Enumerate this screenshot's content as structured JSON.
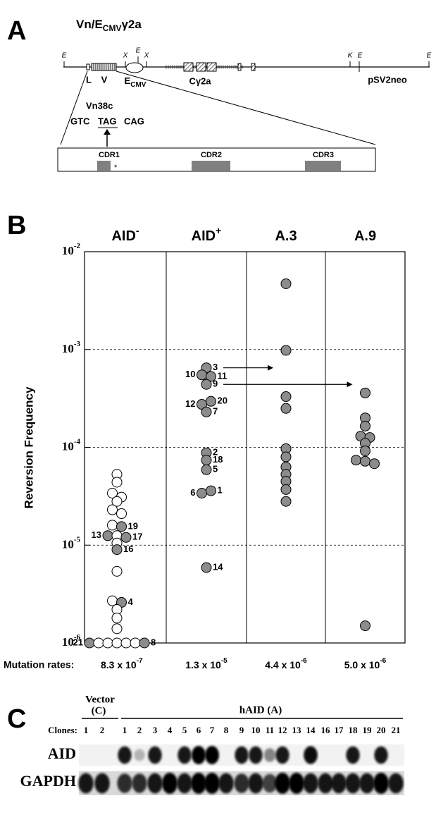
{
  "panel_labels": [
    "A",
    "B",
    "C"
  ],
  "construct": {
    "title": {
      "main": "Vn/E",
      "sub": "CMV",
      "tail": "γ2a"
    },
    "sites": [
      "E",
      "X",
      "E",
      "X",
      "K",
      "E",
      "E"
    ],
    "segments": {
      "L": "L",
      "V": "V",
      "enhancer": {
        "main": "E",
        "sub": "CMV"
      },
      "constant": "Cγ2a",
      "neo": "pSV2neo"
    },
    "mutation": {
      "name": "Vn38c",
      "codons": [
        "GTC",
        "TAG",
        "CAG"
      ]
    },
    "cdrs": [
      "CDR1",
      "CDR2",
      "CDR3"
    ],
    "marker": "*"
  },
  "chart_data": {
    "type": "scatter",
    "y_label": "Reversion Frequency",
    "log": true,
    "grid": true,
    "ylim": [
      1e-06,
      0.01
    ],
    "yticks": [
      {
        "value": 1e-06,
        "label": "10",
        "exponent": "-6"
      },
      {
        "value": 1e-05,
        "label": "10",
        "exponent": "-5"
      },
      {
        "value": 0.0001,
        "label": "10",
        "exponent": "-4"
      },
      {
        "value": 0.001,
        "label": "10",
        "exponent": "-3"
      },
      {
        "value": 0.01,
        "label": "10",
        "exponent": "-2"
      }
    ],
    "categories": [
      "AID",
      "AID",
      "A.3",
      "A.9"
    ],
    "category_superscripts": [
      "-",
      "+",
      null,
      null
    ],
    "mutation_rates_label": "Mutation rates:",
    "mutation_rates": [
      {
        "label": "8.3 x 10",
        "exponent": "-7"
      },
      {
        "label": "1.3 x 10",
        "exponent": "-5"
      },
      {
        "label": "4.4 x 10",
        "exponent": "-6"
      },
      {
        "label": "5.0 x 10",
        "exponent": "-6"
      }
    ],
    "groups": [
      {
        "points": [
          {
            "value": 5.3e-05,
            "color": "#ffffff"
          },
          {
            "value": 4.4e-05,
            "color": "#ffffff"
          },
          {
            "value": 3.4e-05,
            "color": "#ffffff"
          },
          {
            "value": 3.1e-05,
            "color": "#ffffff"
          },
          {
            "value": 2.8e-05,
            "color": "#ffffff"
          },
          {
            "value": 2.3e-05,
            "color": "#ffffff"
          },
          {
            "value": 2.1e-05,
            "color": "#ffffff"
          },
          {
            "value": 1.6e-05,
            "color": "#ffffff"
          },
          {
            "value": 1.55e-05,
            "color": "#8c8c8c",
            "label": "19"
          },
          {
            "value": 1.25e-05,
            "color": "#8c8c8c",
            "label": "13"
          },
          {
            "value": 1.25e-05,
            "color": "#ffffff"
          },
          {
            "value": 1.2e-05,
            "color": "#8c8c8c",
            "label": "17"
          },
          {
            "value": 1.05e-05,
            "color": "#ffffff"
          },
          {
            "value": 9e-06,
            "color": "#8c8c8c",
            "label": "16"
          },
          {
            "value": 5.4e-06,
            "color": "#ffffff"
          },
          {
            "value": 2.7e-06,
            "color": "#ffffff"
          },
          {
            "value": 2.6e-06,
            "color": "#8c8c8c",
            "label": "4"
          },
          {
            "value": 2.2e-06,
            "color": "#ffffff"
          },
          {
            "value": 1.8e-06,
            "color": "#ffffff"
          },
          {
            "value": 1.4e-06,
            "color": "#ffffff"
          },
          {
            "value": 1e-06,
            "color": "#8c8c8c",
            "label": "21"
          },
          {
            "value": 1e-06,
            "color": "#ffffff"
          },
          {
            "value": 1e-06,
            "color": "#ffffff"
          },
          {
            "value": 1e-06,
            "color": "#ffffff"
          },
          {
            "value": 1e-06,
            "color": "#ffffff"
          },
          {
            "value": 1e-06,
            "color": "#ffffff"
          },
          {
            "value": 1e-06,
            "color": "#8c8c8c",
            "label": "8"
          }
        ]
      },
      {
        "points": [
          {
            "value": 0.00065,
            "color": "#8c8c8c",
            "label": "3"
          },
          {
            "value": 0.00055,
            "color": "#8c8c8c",
            "label": "10"
          },
          {
            "value": 0.00053,
            "color": "#8c8c8c",
            "label": "11"
          },
          {
            "value": 0.00044,
            "color": "#8c8c8c",
            "label": "9"
          },
          {
            "value": 0.000275,
            "color": "#8c8c8c",
            "label": "12"
          },
          {
            "value": 0.000295,
            "color": "#8c8c8c",
            "label": "20"
          },
          {
            "value": 0.00023,
            "color": "#8c8c8c",
            "label": "7"
          },
          {
            "value": 8.8e-05,
            "color": "#8c8c8c",
            "label": "2"
          },
          {
            "value": 7.4e-05,
            "color": "#8c8c8c",
            "label": "18"
          },
          {
            "value": 5.9e-05,
            "color": "#8c8c8c",
            "label": "5"
          },
          {
            "value": 3.4e-05,
            "color": "#8c8c8c",
            "label": "6"
          },
          {
            "value": 3.6e-05,
            "color": "#8c8c8c",
            "label": "1"
          },
          {
            "value": 5.9e-06,
            "color": "#8c8c8c",
            "label": "14"
          }
        ]
      },
      {
        "points": [
          {
            "value": 0.0047,
            "color": "#8c8c8c"
          },
          {
            "value": 0.00098,
            "color": "#8c8c8c"
          },
          {
            "value": 0.00033,
            "color": "#8c8c8c"
          },
          {
            "value": 0.00025,
            "color": "#8c8c8c"
          },
          {
            "value": 9.7e-05,
            "color": "#8c8c8c"
          },
          {
            "value": 8e-05,
            "color": "#8c8c8c"
          },
          {
            "value": 6.3e-05,
            "color": "#8c8c8c"
          },
          {
            "value": 5.3e-05,
            "color": "#8c8c8c"
          },
          {
            "value": 4.5e-05,
            "color": "#8c8c8c"
          },
          {
            "value": 3.7e-05,
            "color": "#8c8c8c"
          },
          {
            "value": 2.8e-05,
            "color": "#8c8c8c"
          }
        ]
      },
      {
        "points": [
          {
            "value": 0.00036,
            "color": "#8c8c8c"
          },
          {
            "value": 0.0002,
            "color": "#8c8c8c"
          },
          {
            "value": 0.000165,
            "color": "#8c8c8c"
          },
          {
            "value": 0.00013,
            "color": "#8c8c8c"
          },
          {
            "value": 0.000126,
            "color": "#8c8c8c"
          },
          {
            "value": 0.00011,
            "color": "#8c8c8c"
          },
          {
            "value": 9.2e-05,
            "color": "#8c8c8c"
          },
          {
            "value": 7.4e-05,
            "color": "#8c8c8c"
          },
          {
            "value": 7.2e-05,
            "color": "#8c8c8c"
          },
          {
            "value": 6.8e-05,
            "color": "#8c8c8c"
          },
          {
            "value": 1.5e-06,
            "color": "#8c8c8c"
          }
        ]
      }
    ]
  },
  "blot": {
    "vector": {
      "title": "Vector",
      "sub": "(C)"
    },
    "haid": "hAID (A)",
    "clones_label": "Clones:",
    "vector_clones": [
      "1",
      "2"
    ],
    "haid_clones": [
      "1",
      "2",
      "3",
      "4",
      "5",
      "6",
      "7",
      "8",
      "9",
      "10",
      "11",
      "12",
      "13",
      "14",
      "16",
      "17",
      "18",
      "19",
      "20",
      "21"
    ],
    "rows": [
      "AID",
      "GAPDH"
    ]
  }
}
